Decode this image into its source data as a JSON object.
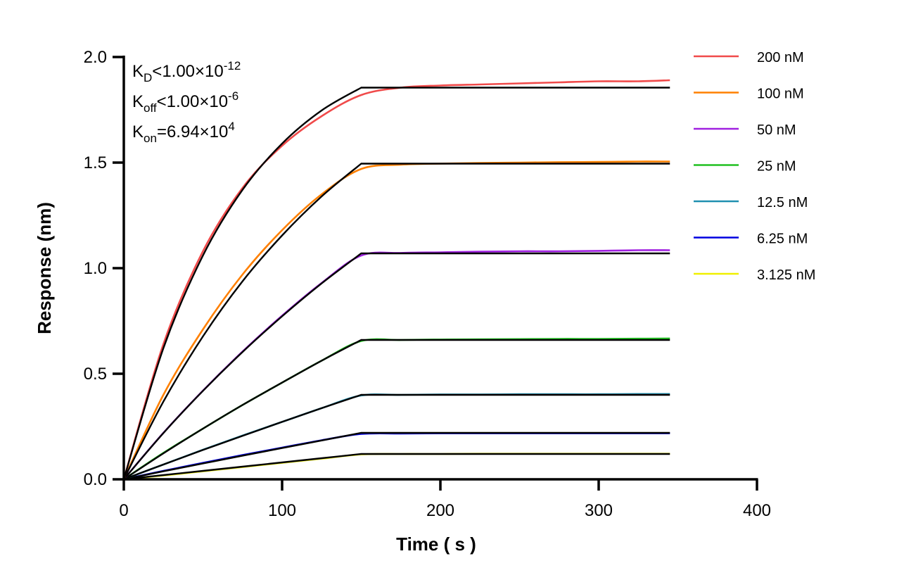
{
  "chart_data": {
    "type": "line",
    "xlabel": "Time ( s )",
    "ylabel": "Response (nm)",
    "xlim": [
      0,
      400
    ],
    "ylim": [
      0,
      2.0
    ],
    "xticks": [
      "0",
      "100",
      "200",
      "300",
      "400"
    ],
    "yticks": [
      "0.0",
      "0.5",
      "1.0",
      "1.5",
      "2.0"
    ],
    "grid": false,
    "legend_position": "right",
    "annotations": [
      {
        "main": "K",
        "sub": "D",
        "rest": "<1.00×10",
        "sup": "-12"
      },
      {
        "main": "K",
        "sub": "off",
        "rest": "<1.00×10",
        "sup": "-6"
      },
      {
        "main": "K",
        "sub": "on",
        "rest": "=6.94×10",
        "sup": "4"
      }
    ],
    "x": [
      0,
      25,
      50,
      75,
      100,
      125,
      150,
      175,
      200,
      225,
      250,
      275,
      300,
      325,
      345
    ],
    "fit_x": [
      0,
      25,
      50,
      75,
      100,
      125,
      150,
      345
    ],
    "fit_color": "#000000",
    "series": [
      {
        "name": "200 nM",
        "color": "#f04a4a",
        "values": [
          0,
          0.64,
          1.08,
          1.38,
          1.58,
          1.72,
          1.82,
          1.855,
          1.865,
          1.87,
          1.875,
          1.88,
          1.885,
          1.885,
          1.89
        ],
        "fit": [
          0,
          0.621,
          1.06,
          1.371,
          1.59,
          1.747,
          1.855,
          1.855
        ]
      },
      {
        "name": "100 nM",
        "color": "#ff8000",
        "values": [
          0,
          0.4,
          0.71,
          0.97,
          1.18,
          1.35,
          1.47,
          1.49,
          1.495,
          1.498,
          1.5,
          1.502,
          1.503,
          1.505,
          1.505
        ],
        "fit": [
          0,
          0.368,
          0.677,
          0.938,
          1.155,
          1.34,
          1.495,
          1.495
        ]
      },
      {
        "name": "50 nM",
        "color": "#a020e0",
        "values": [
          0,
          0.22,
          0.42,
          0.605,
          0.775,
          0.93,
          1.06,
          1.072,
          1.075,
          1.078,
          1.08,
          1.08,
          1.082,
          1.085,
          1.085
        ],
        "fit": [
          0,
          0.219,
          0.419,
          0.603,
          0.772,
          0.928,
          1.07,
          1.07
        ]
      },
      {
        "name": "25 nM",
        "color": "#20c020",
        "values": [
          0,
          0.125,
          0.24,
          0.352,
          0.458,
          0.562,
          0.655,
          0.66,
          0.662,
          0.663,
          0.664,
          0.665,
          0.665,
          0.666,
          0.667
        ],
        "fit": [
          0,
          0.123,
          0.24,
          0.352,
          0.458,
          0.562,
          0.66,
          0.66
        ]
      },
      {
        "name": "12.5 nM",
        "color": "#2090b0",
        "values": [
          0,
          0.07,
          0.14,
          0.207,
          0.272,
          0.337,
          0.397,
          0.4,
          0.402,
          0.402,
          0.403,
          0.403,
          0.403,
          0.404,
          0.404
        ],
        "fit": [
          0,
          0.07,
          0.139,
          0.206,
          0.272,
          0.337,
          0.4,
          0.4
        ]
      },
      {
        "name": "6.25 nM",
        "color": "#0000e0",
        "values": [
          0,
          0.04,
          0.078,
          0.115,
          0.15,
          0.185,
          0.215,
          0.217,
          0.218,
          0.218,
          0.218,
          0.218,
          0.218,
          0.218,
          0.218
        ],
        "fit": [
          0,
          0.038,
          0.075,
          0.112,
          0.148,
          0.184,
          0.22,
          0.22
        ]
      },
      {
        "name": "3.125 nM",
        "color": "#f0f000",
        "values": [
          0,
          0.018,
          0.038,
          0.058,
          0.078,
          0.098,
          0.118,
          0.12,
          0.12,
          0.121,
          0.121,
          0.121,
          0.121,
          0.121,
          0.121
        ],
        "fit": [
          0,
          0.02,
          0.04,
          0.06,
          0.08,
          0.1,
          0.12,
          0.12
        ]
      }
    ]
  }
}
